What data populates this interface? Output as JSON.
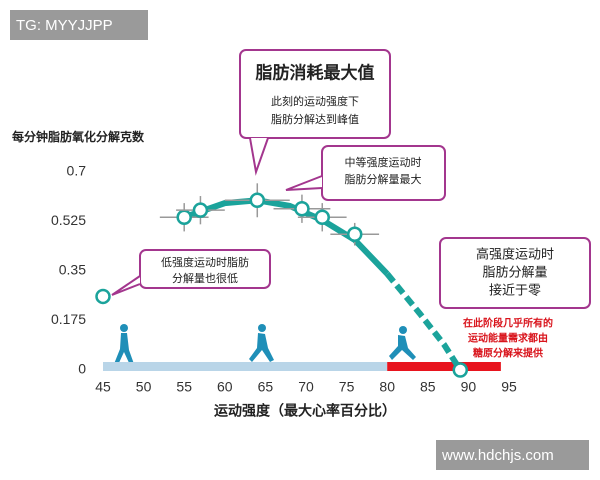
{
  "chart_data": {
    "type": "scatter",
    "y_label": "每分钟脂肪氧化分解克数",
    "x_label": "运动强度（最大心率百分比）",
    "xlim": [
      45,
      95
    ],
    "xticks": [
      45,
      50,
      55,
      60,
      65,
      70,
      75,
      80,
      85,
      90,
      95
    ],
    "ylim": [
      0,
      0.7
    ],
    "yticks": [
      0,
      0.175,
      0.35,
      0.525,
      0.7
    ],
    "color": "#1ba39b",
    "x": [
      55,
      57,
      64,
      69.5,
      72,
      76
    ],
    "values": [
      0.54,
      0.565,
      0.6,
      0.57,
      0.54,
      0.48
    ],
    "xerr": [
      3,
      3,
      4,
      3.5,
      3,
      3
    ],
    "yerr": [
      0.05,
      0.05,
      0.06,
      0.05,
      0.05,
      0.04
    ],
    "curve": {
      "x": [
        55,
        60,
        64,
        68,
        72,
        76,
        80
      ],
      "values": [
        0.54,
        0.59,
        0.6,
        0.58,
        0.53,
        0.46,
        0.34
      ]
    },
    "curve_dashed": {
      "x": [
        80,
        84,
        87,
        89
      ],
      "values": [
        0.34,
        0.2,
        0.09,
        0
      ]
    },
    "end_points": {
      "x": [
        45,
        89
      ],
      "values": [
        0.26,
        0
      ]
    },
    "bands": [
      {
        "from": 45,
        "to": 80,
        "color": "#b9d5e8"
      },
      {
        "from": 80,
        "to": 94,
        "color": "#e8141e"
      }
    ],
    "annotations": [
      {
        "title": "脂肪消耗最大值",
        "lines": [
          "此刻的运动强度下",
          "脂肪分解达到峰值"
        ]
      },
      {
        "lines": [
          "中等强度运动时",
          "脂肪分解量最大"
        ]
      },
      {
        "lines": [
          "低强度运动时脂肪",
          "分解量也很低"
        ]
      },
      {
        "lines": [
          "高强度运动时",
          "脂肪分解量",
          "接近于零"
        ]
      },
      {
        "lines": [
          "在此阶段几乎所有的",
          "运动能量需求都由",
          "糖原分解来提供"
        ]
      }
    ]
  },
  "watermarks": [
    "TG: MYYJJPP",
    "www.hdchjs.com"
  ]
}
